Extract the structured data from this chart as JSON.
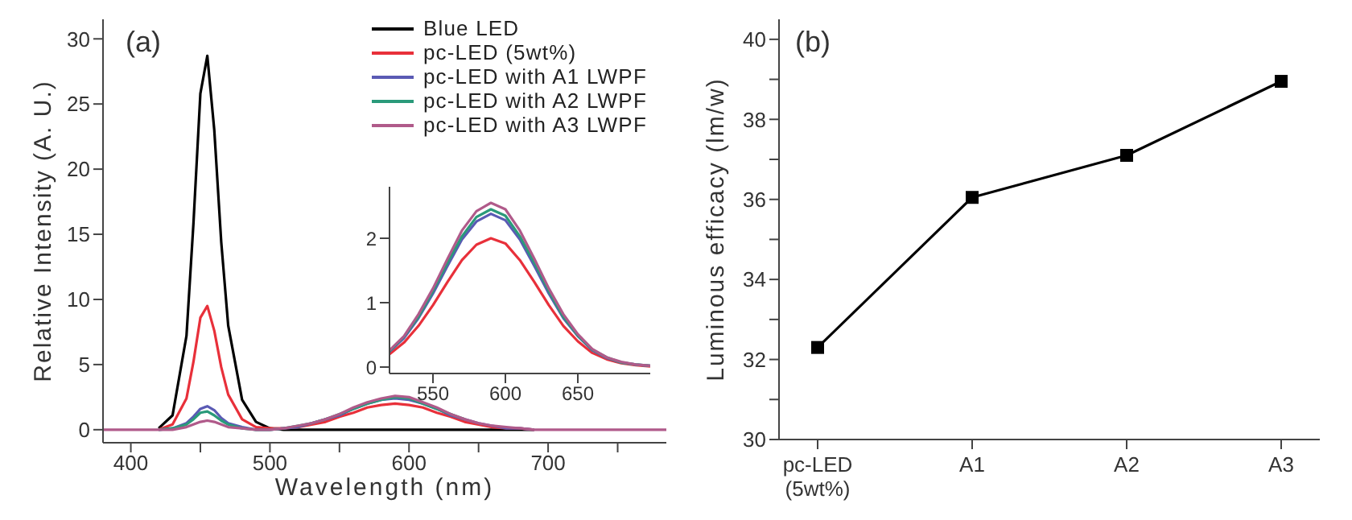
{
  "chart_data": [
    {
      "type": "line",
      "xlabel": "Wavelength (nm)",
      "ylabel": "Relative Intensity (A. U.)",
      "annotations": [
        "(a)"
      ],
      "legend": "top right",
      "marker": "none",
      "x": [
        380,
        400,
        420,
        430,
        440,
        445,
        450,
        455,
        460,
        465,
        470,
        480,
        490,
        500,
        510,
        520,
        530,
        540,
        550,
        560,
        570,
        580,
        590,
        600,
        610,
        620,
        630,
        640,
        650,
        660,
        670,
        680,
        690,
        700,
        720,
        750,
        785
      ],
      "xlim": [
        380,
        785
      ],
      "xticks": [
        400,
        {
          "value": 450,
          "label": null
        },
        500,
        {
          "value": 550,
          "label": null
        },
        600,
        {
          "value": 650,
          "label": null
        },
        700,
        {
          "value": 750,
          "label": null
        }
      ],
      "ylim": [
        -1,
        31.5
      ],
      "yticks": [
        0,
        5,
        10,
        15,
        20,
        25,
        30
      ],
      "series": [
        {
          "name": "Blue LED",
          "color": "#000000",
          "values": [
            null,
            null,
            0.1,
            1.1,
            7.2,
            15.8,
            25.8,
            28.7,
            23,
            14.4,
            8,
            2.3,
            0.6,
            0.1,
            0,
            0,
            0,
            0,
            0,
            0,
            0,
            0,
            0,
            0,
            0,
            0,
            0,
            0,
            0,
            0,
            0,
            0,
            0,
            null,
            null,
            null,
            null
          ]
        },
        {
          "name": "pc-LED (5wt%)",
          "color": "#e8303a",
          "values": [
            null,
            null,
            0,
            0.4,
            2.4,
            5.2,
            8.6,
            9.5,
            7.6,
            4.8,
            2.7,
            0.8,
            0.2,
            0.1,
            0.1,
            0.2,
            0.4,
            0.6,
            1.0,
            1.3,
            1.7,
            1.9,
            2.0,
            1.9,
            1.7,
            1.3,
            1.0,
            0.6,
            0.4,
            0.2,
            0.1,
            0.1,
            0,
            null,
            null,
            null,
            null
          ]
        },
        {
          "name": "pc-LED with A1 LWPF",
          "color": "#5a5ab4",
          "values": [
            null,
            null,
            0,
            0.1,
            0.5,
            1.0,
            1.6,
            1.8,
            1.5,
            0.9,
            0.5,
            0.2,
            0,
            0,
            0.1,
            0.2,
            0.5,
            0.8,
            1.1,
            1.6,
            2.0,
            2.3,
            2.4,
            2.3,
            2.0,
            1.6,
            1.1,
            0.8,
            0.5,
            0.3,
            0.1,
            0.1,
            0,
            null,
            null,
            null,
            null
          ]
        },
        {
          "name": "pc-LED with A2 LWPF",
          "color": "#2a9a7a",
          "values": [
            null,
            null,
            0,
            0.1,
            0.4,
            0.8,
            1.3,
            1.4,
            1.1,
            0.7,
            0.4,
            0.1,
            0,
            0,
            0.1,
            0.3,
            0.5,
            0.8,
            1.2,
            1.6,
            2.0,
            2.3,
            2.5,
            2.4,
            2.0,
            1.6,
            1.2,
            0.8,
            null,
            null,
            null,
            null,
            null,
            null,
            null,
            null,
            null
          ]
        },
        {
          "name": "pc-LED with A3 LWPF",
          "color": "#b05a8a",
          "values": [
            0,
            0,
            0,
            0,
            0.2,
            0.4,
            0.6,
            0.7,
            0.6,
            0.4,
            0.2,
            0.1,
            0,
            0,
            0.1,
            0.3,
            0.5,
            0.8,
            1.2,
            1.7,
            2.1,
            2.4,
            2.6,
            2.5,
            2.1,
            1.7,
            1.2,
            0.8,
            0.5,
            0.3,
            0.2,
            0.1,
            0,
            0,
            0,
            0,
            0
          ]
        }
      ]
    },
    {
      "type": "line",
      "marker": "none",
      "x": [
        520,
        530,
        540,
        550,
        560,
        570,
        580,
        590,
        600,
        610,
        620,
        630,
        640,
        650,
        660,
        670,
        680,
        690,
        700
      ],
      "xlim": [
        520,
        700
      ],
      "xticks": [
        550,
        600,
        650
      ],
      "ylim": [
        -0.1,
        2.8
      ],
      "yticks": [
        0,
        1,
        2
      ],
      "series": [
        {
          "color": "#e8303a",
          "values": [
            0.2,
            0.38,
            0.64,
            0.96,
            1.32,
            1.66,
            1.9,
            2.0,
            1.92,
            1.66,
            1.32,
            0.96,
            0.64,
            0.4,
            0.22,
            0.12,
            0.06,
            0.03,
            0.01
          ]
        },
        {
          "color": "#5a5ab4",
          "values": [
            0.24,
            0.45,
            0.76,
            1.14,
            1.57,
            1.98,
            2.26,
            2.38,
            2.28,
            1.98,
            1.57,
            1.14,
            0.76,
            0.48,
            0.26,
            0.14,
            0.07,
            0.04,
            0.02
          ]
        },
        {
          "color": "#2a9a7a",
          "values": [
            0.25,
            0.47,
            0.78,
            1.18,
            1.62,
            2.03,
            2.33,
            2.45,
            2.35,
            2.03,
            1.62,
            1.18,
            0.78,
            0.49,
            0.27,
            0.15,
            0.07,
            0.04,
            0.02
          ]
        },
        {
          "color": "#b05a8a",
          "values": [
            0.26,
            0.48,
            0.82,
            1.22,
            1.68,
            2.12,
            2.42,
            2.55,
            2.45,
            2.12,
            1.68,
            1.22,
            0.82,
            0.51,
            0.28,
            0.15,
            0.08,
            0.04,
            0.02
          ]
        }
      ]
    },
    {
      "type": "line",
      "ylabel": "Luminous efficacy (lm/w)",
      "annotations": [
        "(b)"
      ],
      "marker": "square",
      "categories": [
        "pc-LED (5wt%)",
        "A1",
        "A2",
        "A3"
      ],
      "ylim": [
        30,
        40.5
      ],
      "yticks": [
        30,
        {
          "value": 31,
          "label": null
        },
        32,
        {
          "value": 33,
          "label": null
        },
        34,
        {
          "value": 35,
          "label": null
        },
        36,
        {
          "value": 37,
          "label": null
        },
        38,
        {
          "value": 39,
          "label": null
        },
        40
      ],
      "series": [
        {
          "color": "#000000",
          "values": [
            32.3,
            36.05,
            37.1,
            38.95
          ]
        }
      ]
    }
  ]
}
